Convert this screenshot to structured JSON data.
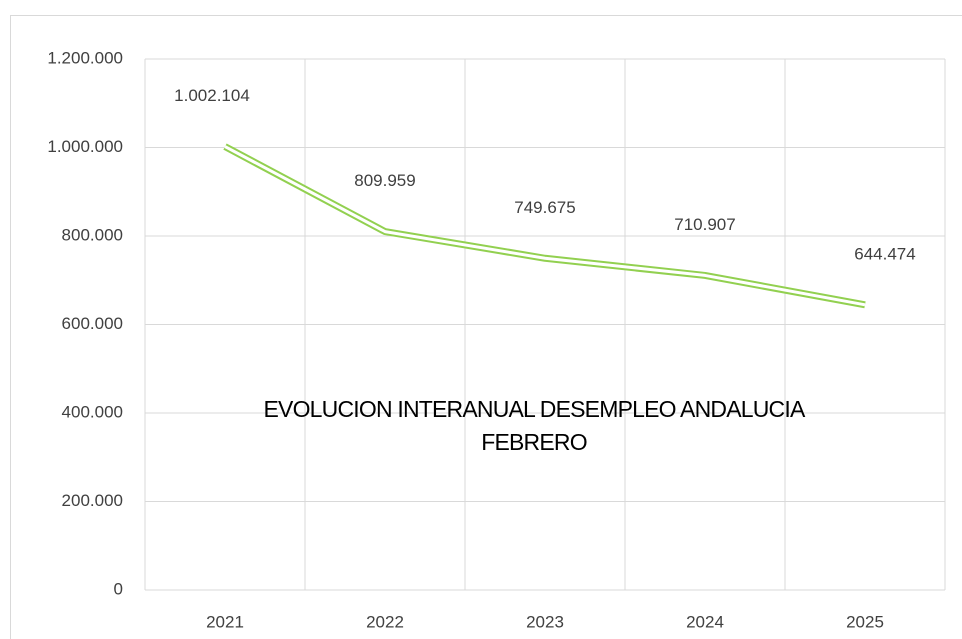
{
  "chart_data": {
    "type": "line",
    "title": "EVOLUCION INTERANUAL DESEMPLEO ANDALUCIA FEBRERO",
    "categories": [
      "2021",
      "2022",
      "2023",
      "2024",
      "2025"
    ],
    "values": [
      1002104,
      809959,
      749675,
      710907,
      644474
    ],
    "value_labels": [
      "1.002.104",
      "809.959",
      "749.675",
      "710.907",
      "644.474"
    ],
    "color": "#92d050",
    "ylim": [
      0,
      1200000
    ],
    "yticks": [
      0,
      {
        "value": 200000,
        "label": "200.000"
      },
      {
        "value": 400000,
        "label": "400.000"
      },
      {
        "value": 600000,
        "label": "600.000"
      },
      {
        "value": 800000,
        "label": "800.000"
      },
      {
        "value": 1000000,
        "label": "1.000.000"
      },
      {
        "value": 1200000,
        "label": "1.200.000"
      }
    ],
    "grid": true
  }
}
